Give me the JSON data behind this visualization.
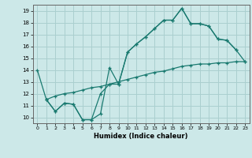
{
  "xlabel": "Humidex (Indice chaleur)",
  "background_color": "#cce8e8",
  "grid_color": "#aacfcf",
  "line_color": "#1a7a70",
  "xlim": [
    -0.5,
    23.5
  ],
  "ylim": [
    9.5,
    19.5
  ],
  "xticks": [
    0,
    1,
    2,
    3,
    4,
    5,
    6,
    7,
    8,
    9,
    10,
    11,
    12,
    13,
    14,
    15,
    16,
    17,
    18,
    19,
    20,
    21,
    22,
    23
  ],
  "yticks": [
    10,
    11,
    12,
    13,
    14,
    15,
    16,
    17,
    18,
    19
  ],
  "line1_x": [
    0,
    1,
    2,
    3,
    4,
    5,
    6,
    7,
    8,
    9,
    10,
    11,
    12,
    13,
    14,
    15,
    16,
    17,
    18,
    19,
    20,
    21,
    22
  ],
  "line1_y": [
    14.0,
    11.5,
    10.5,
    11.2,
    11.1,
    9.8,
    9.8,
    10.3,
    14.2,
    12.8,
    15.5,
    16.2,
    16.8,
    17.5,
    18.2,
    18.2,
    19.2,
    17.9,
    17.9,
    17.7,
    16.6,
    16.5,
    15.7
  ],
  "line2_x": [
    1,
    2,
    3,
    4,
    5,
    6,
    7,
    8,
    9,
    10,
    11,
    12,
    13,
    14,
    15,
    16,
    17,
    18,
    19,
    20,
    21,
    22,
    23
  ],
  "line2_y": [
    11.5,
    11.8,
    12.0,
    12.1,
    12.3,
    12.5,
    12.6,
    12.8,
    13.0,
    13.2,
    13.4,
    13.6,
    13.8,
    13.9,
    14.1,
    14.3,
    14.4,
    14.5,
    14.5,
    14.6,
    14.6,
    14.7,
    14.7
  ],
  "line3_x": [
    1,
    2,
    3,
    4,
    5,
    6,
    7,
    8,
    9,
    10,
    11,
    12,
    13,
    14,
    15,
    16,
    17,
    18,
    19,
    20,
    21,
    22,
    23
  ],
  "line3_y": [
    11.5,
    10.5,
    11.2,
    11.1,
    9.8,
    9.8,
    12.0,
    12.8,
    12.8,
    15.5,
    16.2,
    16.8,
    17.5,
    18.2,
    18.2,
    19.2,
    17.9,
    17.9,
    17.7,
    16.6,
    16.5,
    15.7,
    14.7
  ]
}
